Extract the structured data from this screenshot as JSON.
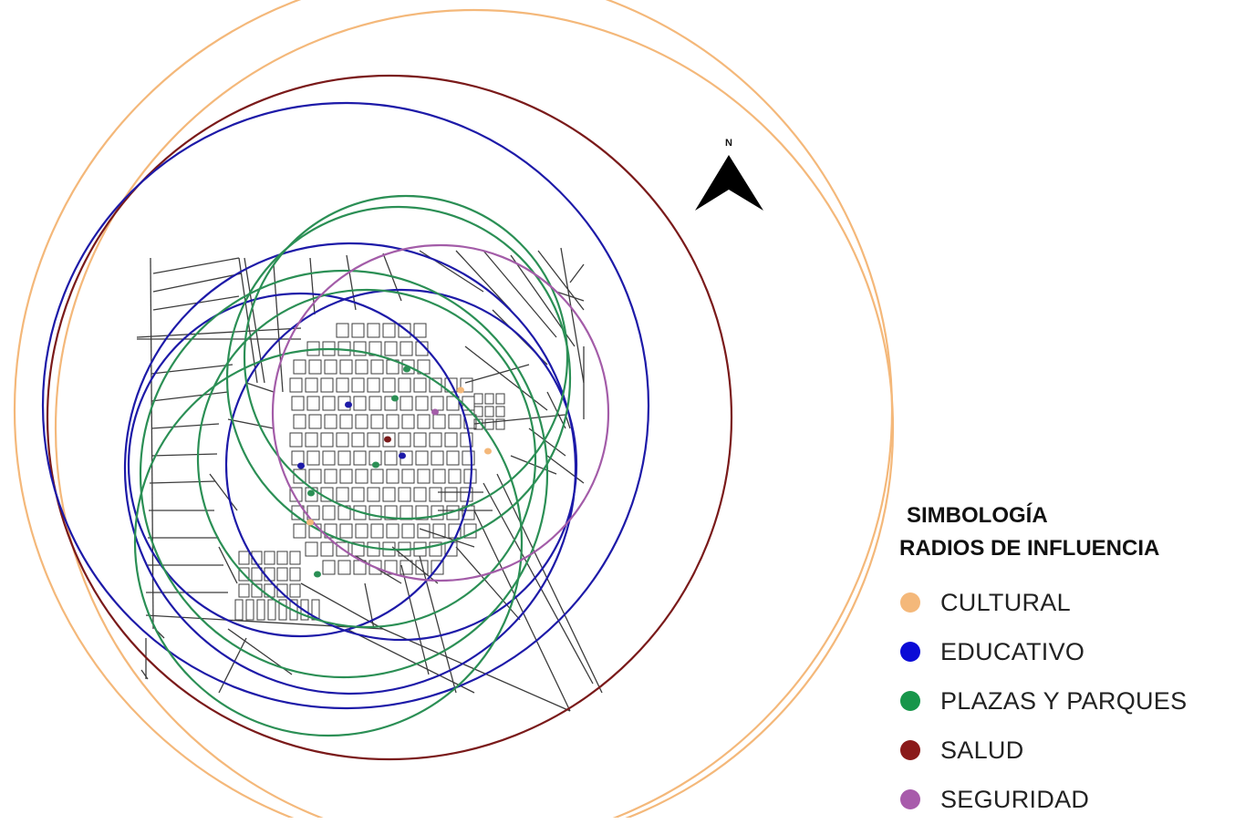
{
  "map": {
    "north_label": "N",
    "colors": {
      "cultural": "#f4b87a",
      "educativo": "#1d1aa8",
      "plazas": "#2b8f55",
      "salud": "#7a1a1a",
      "seguridad": "#a35ca8",
      "streets": "#3c3c3c"
    }
  },
  "legend": {
    "title_line1": "SIMBOLOGÍA",
    "title_line2": "RADIOS DE INFLUENCIA",
    "items": [
      {
        "label": "CULTURAL",
        "color": "#f4b87a"
      },
      {
        "label": "EDUCATIVO",
        "color": "#0b0bd6"
      },
      {
        "label": "PLAZAS Y PARQUES",
        "color": "#17964a"
      },
      {
        "label": "SALUD",
        "color": "#8b1a1a"
      },
      {
        "label": "SEGURIDAD",
        "color": "#a85bab"
      }
    ]
  }
}
